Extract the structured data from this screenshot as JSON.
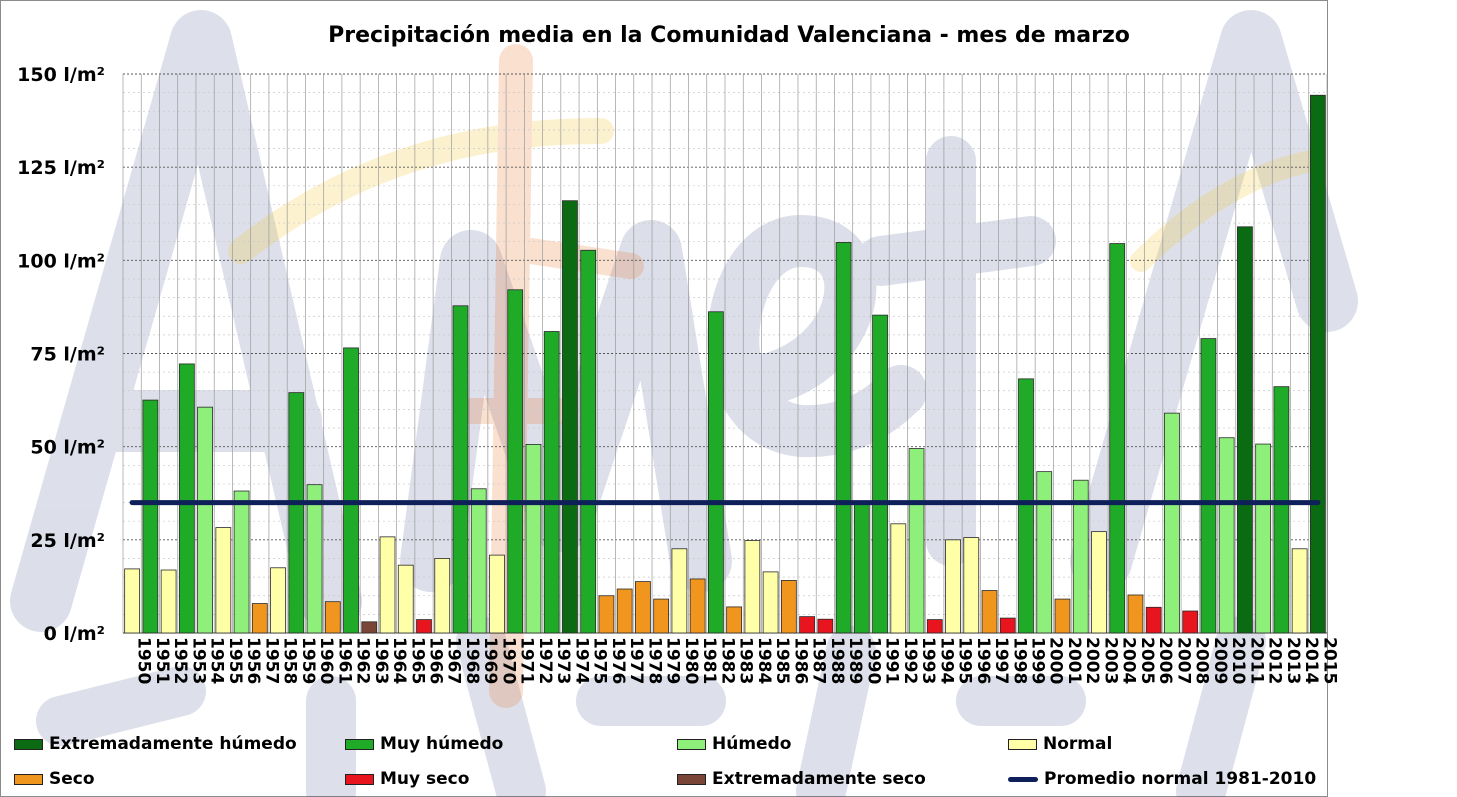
{
  "chart_data": {
    "type": "bar",
    "title": "Precipitación media en la Comunidad Valenciana - mes de marzo",
    "unit": "l/m²",
    "ylim": [
      0,
      150
    ],
    "yticks": [
      0,
      25,
      50,
      75,
      100,
      125,
      150
    ],
    "ytick_labels": [
      "0 l/m²",
      "25 l/m²",
      "50 l/m²",
      "75 l/m²",
      "100 l/m²",
      "125 l/m²",
      "150 l/m²"
    ],
    "categories": [
      "1950",
      "1951",
      "1952",
      "1953",
      "1954",
      "1955",
      "1956",
      "1957",
      "1958",
      "1959",
      "1960",
      "1961",
      "1962",
      "1963",
      "1964",
      "1965",
      "1966",
      "1967",
      "1968",
      "1969",
      "1970",
      "1971",
      "1972",
      "1973",
      "1974",
      "1975",
      "1976",
      "1977",
      "1978",
      "1979",
      "1980",
      "1981",
      "1982",
      "1983",
      "1984",
      "1985",
      "1986",
      "1987",
      "1988",
      "1989",
      "1990",
      "1991",
      "1992",
      "1993",
      "1994",
      "1995",
      "1996",
      "1997",
      "1998",
      "1999",
      "2000",
      "2001",
      "2002",
      "2003",
      "2004",
      "2005",
      "2006",
      "2007",
      "2008",
      "2009",
      "2010",
      "2011",
      "2012",
      "2013",
      "2014",
      "2015"
    ],
    "values": [
      17.2,
      62.5,
      16.9,
      72.2,
      60.6,
      28.3,
      38.1,
      7.9,
      17.5,
      64.5,
      39.8,
      8.4,
      76.5,
      3.0,
      25.8,
      18.2,
      3.6,
      20.0,
      87.8,
      38.7,
      20.9,
      92.1,
      50.6,
      80.9,
      116.0,
      102.7,
      10.0,
      11.8,
      13.8,
      9.1,
      22.6,
      14.5,
      86.2,
      7.0,
      24.8,
      16.4,
      14.1,
      4.4,
      3.7,
      104.8,
      35.1,
      85.3,
      29.3,
      49.5,
      3.6,
      25.0,
      25.6,
      11.4,
      4.0,
      68.2,
      43.3,
      9.1,
      41.0,
      27.2,
      104.5,
      10.2,
      6.9,
      59.0,
      5.9,
      79.0,
      52.4,
      109.0,
      50.7,
      66.1,
      22.6,
      144.3
    ],
    "classes": [
      "N",
      "MH",
      "N",
      "MH",
      "H",
      "N",
      "H",
      "S",
      "N",
      "MH",
      "H",
      "S",
      "MH",
      "ES",
      "N",
      "N",
      "MS",
      "N",
      "MH",
      "H",
      "N",
      "MH",
      "H",
      "MH",
      "EH",
      "MH",
      "S",
      "S",
      "S",
      "S",
      "N",
      "S",
      "MH",
      "S",
      "N",
      "N",
      "S",
      "MS",
      "MS",
      "MH",
      "MH",
      "MH",
      "N",
      "H",
      "MS",
      "N",
      "N",
      "S",
      "MS",
      "MH",
      "H",
      "S",
      "H",
      "N",
      "MH",
      "S",
      "MS",
      "H",
      "MS",
      "MH",
      "H",
      "EH",
      "H",
      "MH",
      "N",
      "EH"
    ],
    "reference_line": {
      "name": "Promedio normal 1981-2010",
      "value": 35
    },
    "legend": [
      {
        "key": "EH",
        "label": "Extremadamente húmedo",
        "color": "#0a6b12"
      },
      {
        "key": "MH",
        "label": "Muy húmedo",
        "color": "#1faa27"
      },
      {
        "key": "H",
        "label": "Húmedo",
        "color": "#8ef07a"
      },
      {
        "key": "N",
        "label": "Normal",
        "color": "#ffffa8"
      },
      {
        "key": "S",
        "label": "Seco",
        "color": "#f0961e"
      },
      {
        "key": "MS",
        "label": "Muy seco",
        "color": "#e8141e"
      },
      {
        "key": "ES",
        "label": "Extremadamente seco",
        "color": "#7a4536"
      },
      {
        "key": "line",
        "label": "Promedio normal 1981-2010",
        "color": "#0f1f5a"
      }
    ],
    "grid": true,
    "legend_position": "bottom"
  },
  "watermark_text": "AEMet"
}
